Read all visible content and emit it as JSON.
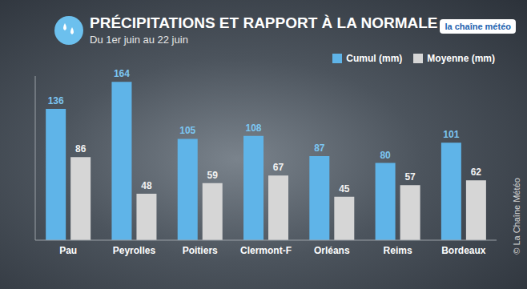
{
  "chart_data": {
    "type": "bar",
    "title": "PRÉCIPITATIONS ET RAPPORT À LA NORMALE",
    "subtitle": "Du 1er juin au 22 juin",
    "logo": "la chaîne météo",
    "source": "© La Chaîne Météo",
    "categories": [
      "Pau",
      "Peyrolles",
      "Poitiers",
      "Clermont-F",
      "Orléans",
      "Reims",
      "Bordeaux"
    ],
    "series": [
      {
        "name": "Cumul (mm)",
        "color": "#5fb4e8",
        "values": [
          136,
          164,
          105,
          108,
          87,
          80,
          101
        ]
      },
      {
        "name": "Moyenne (mm)",
        "color": "#d6d6d6",
        "values": [
          86,
          48,
          59,
          67,
          45,
          57,
          62
        ]
      }
    ],
    "ylim": [
      0,
      170
    ],
    "grid": false,
    "legend": "upper right",
    "data_labels": true,
    "tick_labels": "x"
  }
}
